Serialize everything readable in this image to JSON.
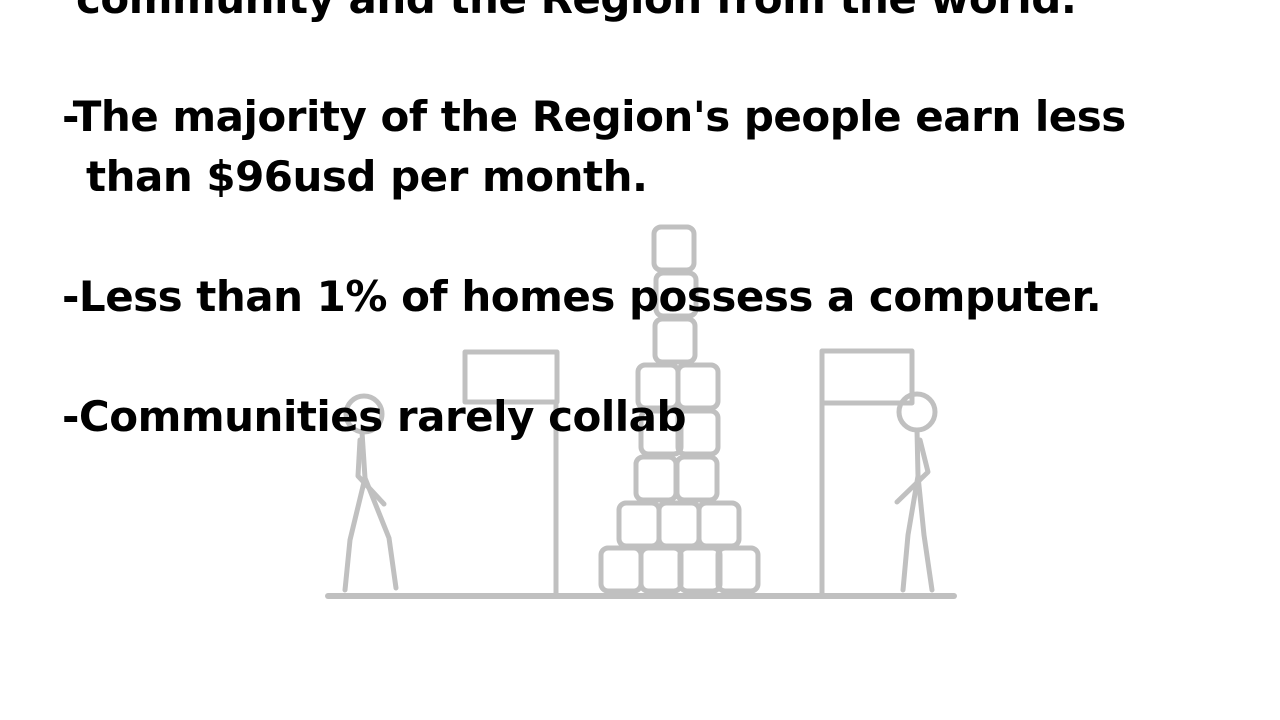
{
  "slide": {
    "lines": [
      "community and the Region from the world.",
      "-The majority of the Region's people earn less",
      "than $96usd per month.",
      "-Less than 1% of homes possess a computer.",
      "-Communities rarely collab"
    ]
  },
  "illustration": {
    "description_icon": "stick-figures-walls-block-tower",
    "stroke_color": "#c0c0c0"
  }
}
